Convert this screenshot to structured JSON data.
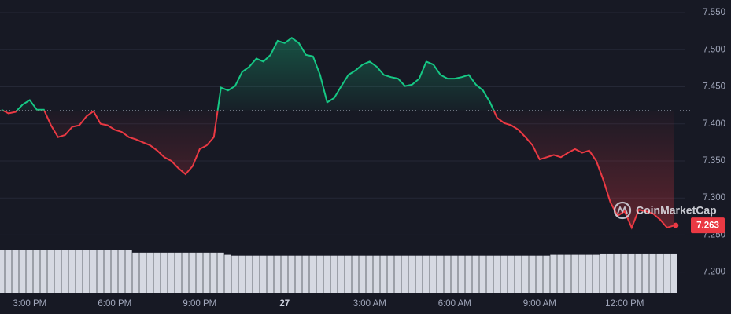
{
  "chart_data": {
    "type": "line",
    "x": [
      14,
      14.25,
      14.5,
      14.75,
      15,
      15.25,
      15.5,
      15.75,
      16,
      16.25,
      16.5,
      16.75,
      17,
      17.25,
      17.5,
      17.75,
      18,
      18.25,
      18.5,
      18.75,
      19,
      19.25,
      19.5,
      19.75,
      20,
      20.25,
      20.5,
      20.75,
      21,
      21.25,
      21.5,
      21.75,
      22,
      22.25,
      22.5,
      22.75,
      23,
      23.25,
      23.5,
      23.75,
      24,
      24.25,
      24.5,
      24.75,
      25,
      25.25,
      25.5,
      25.75,
      26,
      26.25,
      26.5,
      26.75,
      27,
      27.25,
      27.5,
      27.75,
      28,
      28.25,
      28.5,
      28.75,
      29,
      29.25,
      29.5,
      29.75,
      30,
      30.25,
      30.5,
      30.75,
      31,
      31.25,
      31.5,
      31.75,
      32,
      32.25,
      32.5,
      32.75,
      33,
      33.25,
      33.5,
      33.75,
      34,
      34.25,
      34.5,
      34.75,
      35,
      35.25,
      35.5,
      35.75,
      36,
      36.25,
      36.5,
      36.75,
      37,
      37.25,
      37.5,
      37.75
    ],
    "values": [
      7.419,
      7.414,
      7.416,
      7.426,
      7.432,
      7.419,
      7.419,
      7.398,
      7.382,
      7.385,
      7.396,
      7.398,
      7.41,
      7.417,
      7.4,
      7.398,
      7.392,
      7.389,
      7.382,
      7.379,
      7.375,
      7.371,
      7.364,
      7.355,
      7.35,
      7.34,
      7.332,
      7.343,
      7.366,
      7.371,
      7.382,
      7.449,
      7.445,
      7.451,
      7.47,
      7.477,
      7.488,
      7.484,
      7.493,
      7.512,
      7.509,
      7.516,
      7.509,
      7.493,
      7.491,
      7.466,
      7.429,
      7.435,
      7.451,
      7.466,
      7.472,
      7.48,
      7.484,
      7.477,
      7.466,
      7.463,
      7.461,
      7.451,
      7.453,
      7.461,
      7.484,
      7.48,
      7.466,
      7.461,
      7.461,
      7.463,
      7.466,
      7.453,
      7.445,
      7.429,
      7.408,
      7.401,
      7.398,
      7.392,
      7.382,
      7.371,
      7.352,
      7.355,
      7.358,
      7.355,
      7.361,
      7.366,
      7.361,
      7.364,
      7.35,
      7.324,
      7.294,
      7.276,
      7.282,
      7.26,
      7.284,
      7.282,
      7.279,
      7.271,
      7.26,
      7.263
    ],
    "volume": [
      100,
      100,
      100,
      100,
      100,
      100,
      100,
      100,
      100,
      100,
      100,
      100,
      100,
      100,
      100,
      100,
      100,
      100,
      100,
      93,
      93,
      93,
      93,
      93,
      93,
      93,
      93,
      93,
      93,
      93,
      93,
      93,
      88,
      86,
      86,
      86,
      86,
      86,
      86,
      86,
      86,
      86,
      86,
      86,
      86,
      86,
      86,
      86,
      86,
      86,
      86,
      86,
      86,
      86,
      86,
      86,
      86,
      86,
      86,
      86,
      86,
      86,
      86,
      86,
      86,
      86,
      86,
      86,
      86,
      86,
      86,
      86,
      86,
      86,
      86,
      86,
      86,
      86,
      88,
      88,
      88,
      88,
      88,
      88,
      88,
      91,
      91,
      91,
      91,
      91,
      91,
      91,
      91,
      91,
      91,
      91
    ],
    "baseline": 7.418,
    "up_color": "#16c784",
    "down_color": "#ea3943",
    "volume_color": "#d6d9e2",
    "xlim": [
      13.95,
      37.95
    ],
    "xticks": [
      {
        "value": 15,
        "label": "3:00 PM"
      },
      {
        "value": 18,
        "label": "6:00 PM"
      },
      {
        "value": 21,
        "label": "9:00 PM"
      },
      {
        "value": 24,
        "label": "27"
      },
      {
        "value": 27,
        "label": "3:00 AM"
      },
      {
        "value": 30,
        "label": "6:00 AM"
      },
      {
        "value": 33,
        "label": "9:00 AM"
      },
      {
        "value": 36,
        "label": "12:00 PM"
      }
    ],
    "ylim": [
      7.17,
      7.567
    ],
    "yticks": [
      {
        "value": 7.2,
        "label": "7.200"
      },
      {
        "value": 7.25,
        "label": "7.250"
      },
      {
        "value": 7.3,
        "label": "7.300"
      },
      {
        "value": 7.35,
        "label": "7.350"
      },
      {
        "value": 7.4,
        "label": "7.400"
      },
      {
        "value": 7.45,
        "label": "7.450"
      },
      {
        "value": 7.5,
        "label": "7.500"
      },
      {
        "value": 7.55,
        "label": "7.550"
      }
    ],
    "grid": true,
    "watermark": "CoinMarketCap"
  }
}
